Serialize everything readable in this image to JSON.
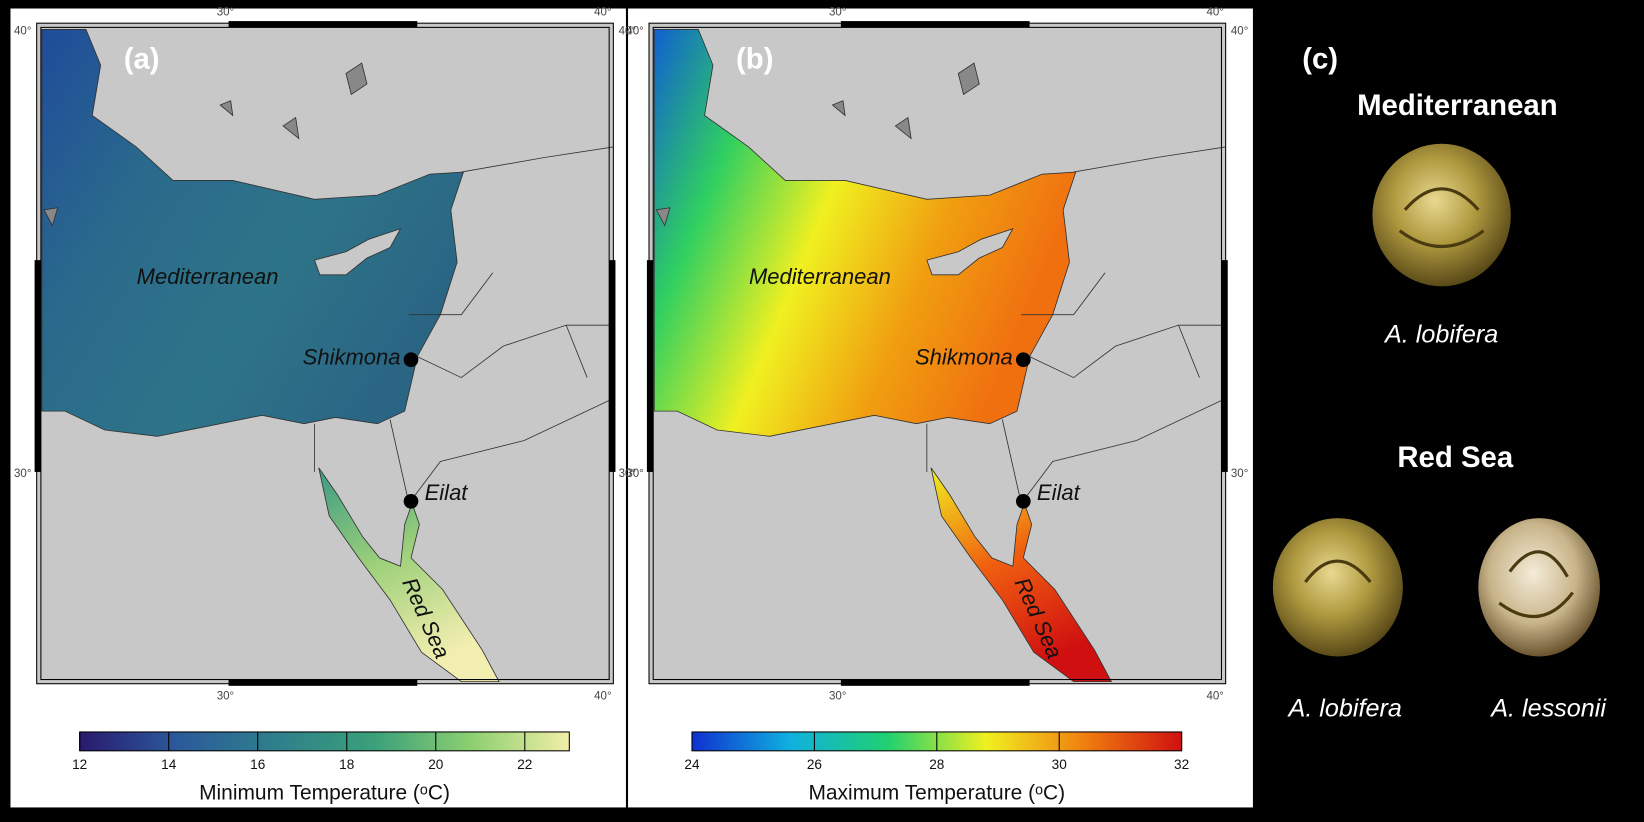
{
  "panels": [
    {
      "label": "(a)",
      "map": {
        "sea_label": "Mediterranean",
        "sites": [
          "Shikmona",
          "Eilat"
        ],
        "red_sea_label": "Red Sea",
        "frame_ticks": {
          "top": [
            "30°",
            "40°"
          ],
          "left": [
            "40°",
            "30°"
          ],
          "bottom": [
            "30°",
            "40°"
          ],
          "right": [
            "40°",
            "30°"
          ]
        }
      },
      "colorbar": {
        "title": "Minimum Temperature (ᵒC)",
        "lim": [
          12,
          23
        ],
        "ticks": [
          12,
          14,
          16,
          18,
          20,
          22
        ],
        "colors": [
          "#2a1a6e",
          "#2b5a9a",
          "#2e7f8c",
          "#3aa07a",
          "#8ccf70",
          "#f2eea8"
        ]
      }
    },
    {
      "label": "(b)",
      "map": {
        "sea_label": "Mediterranean",
        "sites": [
          "Shikmona",
          "Eilat"
        ],
        "red_sea_label": "Red Sea",
        "frame_ticks": {
          "top": [
            "30°",
            "40°"
          ],
          "left": [
            "40°",
            "30°"
          ],
          "bottom": [
            "30°",
            "40°"
          ],
          "right": [
            "40°",
            "30°"
          ]
        }
      },
      "colorbar": {
        "title": "Maximum Temperature (ᵒC)",
        "lim": [
          24,
          32
        ],
        "ticks": [
          24,
          26,
          28,
          30,
          32
        ],
        "colors": [
          "#1030d0",
          "#10b0e0",
          "#20d070",
          "#f0f020",
          "#f08010",
          "#d01010"
        ]
      }
    },
    {
      "label": "(c)",
      "groups": [
        {
          "title": "Mediterranean",
          "species": [
            "A. lobifera"
          ]
        },
        {
          "title": "Red Sea",
          "species": [
            "A. lobifera",
            "A. lessonii"
          ]
        }
      ]
    }
  ]
}
